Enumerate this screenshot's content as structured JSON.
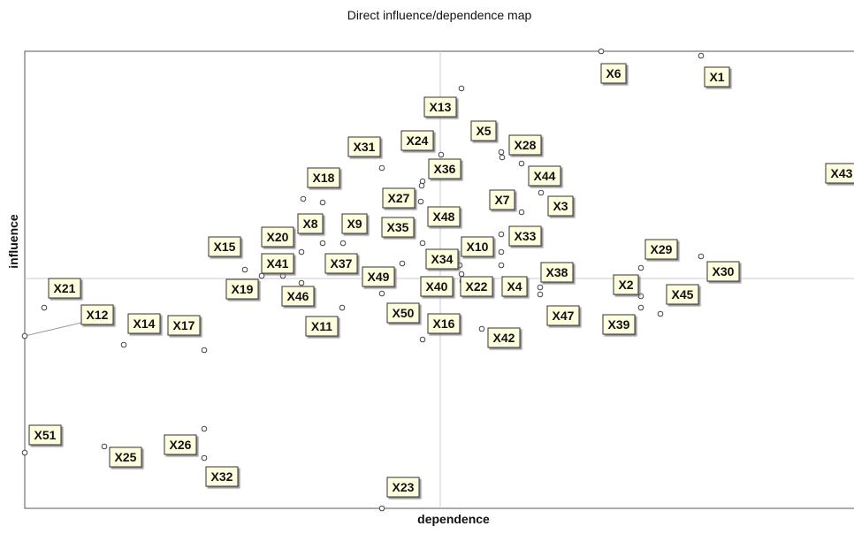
{
  "header": {
    "title": "Direct influence/dependence map"
  },
  "axes": {
    "x_label": "dependence",
    "y_label": "influence"
  },
  "nodes": [
    {
      "label": "X6"
    },
    {
      "label": "X1"
    },
    {
      "label": "X13"
    },
    {
      "label": "X5"
    },
    {
      "label": "X28"
    },
    {
      "label": "X24"
    },
    {
      "label": "X31"
    },
    {
      "label": "X36"
    },
    {
      "label": "X44"
    },
    {
      "label": "X18"
    },
    {
      "label": "X27"
    },
    {
      "label": "X7"
    },
    {
      "label": "X3"
    },
    {
      "label": "X43"
    },
    {
      "label": "X48"
    },
    {
      "label": "X8"
    },
    {
      "label": "X9"
    },
    {
      "label": "X35"
    },
    {
      "label": "X33"
    },
    {
      "label": "X20"
    },
    {
      "label": "X10"
    },
    {
      "label": "X15"
    },
    {
      "label": "X29"
    },
    {
      "label": "X37"
    },
    {
      "label": "X34"
    },
    {
      "label": "X41"
    },
    {
      "label": "X30"
    },
    {
      "label": "X49"
    },
    {
      "label": "X38"
    },
    {
      "label": "X19"
    },
    {
      "label": "X40"
    },
    {
      "label": "X22"
    },
    {
      "label": "X4"
    },
    {
      "label": "X2"
    },
    {
      "label": "X21"
    },
    {
      "label": "X46"
    },
    {
      "label": "X45"
    },
    {
      "label": "X50"
    },
    {
      "label": "X47"
    },
    {
      "label": "X11"
    },
    {
      "label": "X12"
    },
    {
      "label": "X14"
    },
    {
      "label": "X17"
    },
    {
      "label": "X16"
    },
    {
      "label": "X39"
    },
    {
      "label": "X42"
    },
    {
      "label": "X51"
    },
    {
      "label": "X25"
    },
    {
      "label": "X26"
    },
    {
      "label": "X32"
    },
    {
      "label": "X23"
    }
  ]
}
